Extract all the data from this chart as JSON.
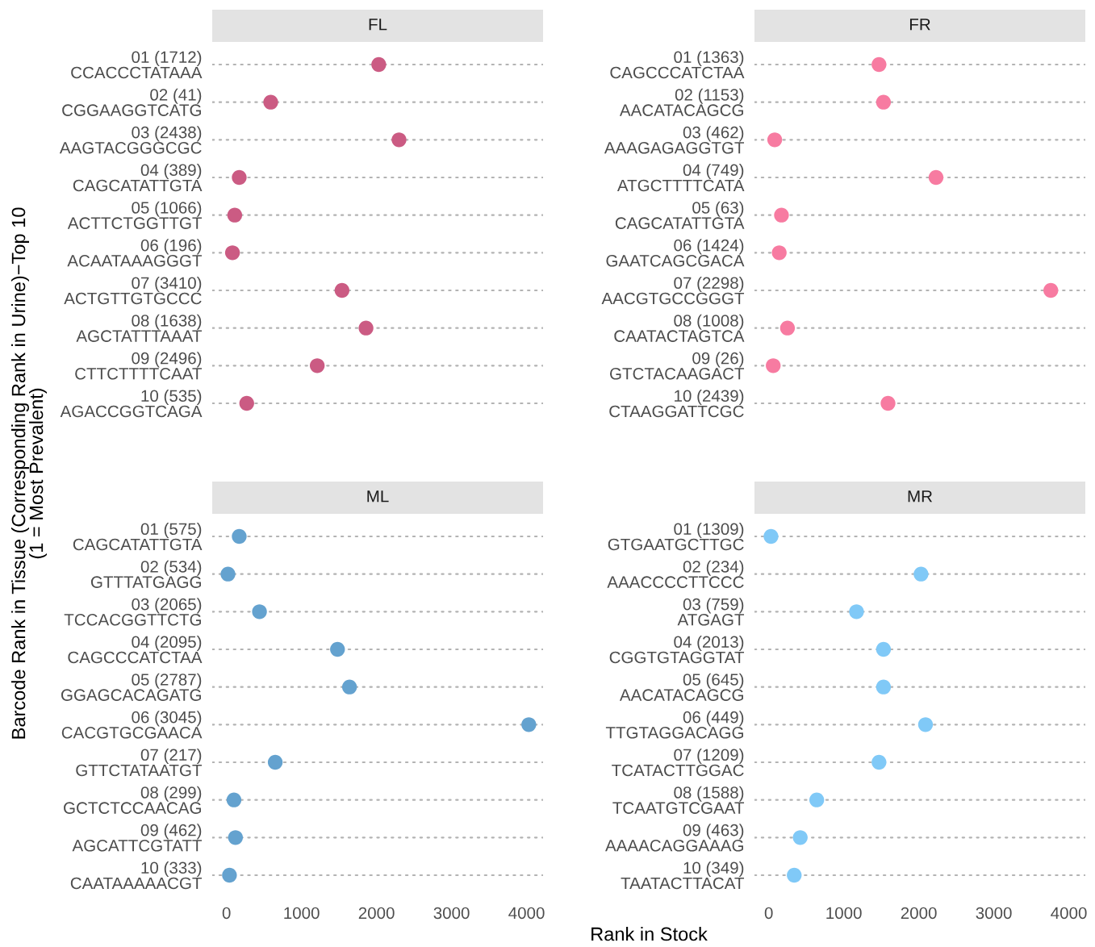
{
  "chart_data": [
    {
      "type": "scatter",
      "title": "FL",
      "ylabel": "Barcode Rank in Tissue (Corresponding Rank in Urine)−Top 10\n(1 = Most Prevalent)",
      "orientation": "horizontal",
      "marker": "circle",
      "grid": "y",
      "tick_labels": "y",
      "color": "#cb5b83",
      "categories": [
        "01 (1712)\nCCACCCTATAAA",
        "02 (41)\nCGGAAGGTCATG",
        "03 (2438)\nAAGTACGGGCGC",
        "04 (389)\nCAGCATATTGTA",
        "05 (1066)\nACTTCTGGTTGT",
        "06 (196)\nACAATAAAGGGT",
        "07 (3410)\nACTGTTGTGCCC",
        "08 (1638)\nAGCTATTTAAAT",
        "09 (2496)\nCTTCTTTTCAAT",
        "10 (535)\nAGACCGGTCAGA"
      ],
      "values": [
        2030,
        590,
        2300,
        170,
        110,
        80,
        1540,
        1860,
        1210,
        270
      ],
      "xlim": [
        -190,
        4220
      ],
      "xticks": [
        0,
        1000,
        2000,
        3000,
        4000
      ]
    },
    {
      "type": "scatter",
      "title": "FR",
      "orientation": "horizontal",
      "marker": "circle",
      "grid": "y",
      "tick_labels": "y",
      "color": "#f77ba1",
      "categories": [
        "01 (1363)\nCAGCCCATCTAA",
        "02 (1153)\nAACATACAGCG",
        "03 (462)\nAAAGAGAGGTGT",
        "04 (749)\nATGCTTTTCATA",
        "05 (63)\nCAGCATATTGTA",
        "06 (1424)\nGAATCAGCGACA",
        "07 (2298)\nAACGTGCCGGGT",
        "08 (1008)\nCAATACTAGTCA",
        "09 (26)\nGTCTACAAGACT",
        "10 (2439)\nCTAAGGATTCGC"
      ],
      "values": [
        1470,
        1530,
        80,
        2230,
        170,
        140,
        3760,
        250,
        60,
        1590
      ],
      "xlim": [
        -190,
        4220
      ],
      "xticks": [
        0,
        1000,
        2000,
        3000,
        4000
      ]
    },
    {
      "type": "scatter",
      "title": "ML",
      "xlabel": "Rank in Stock",
      "orientation": "horizontal",
      "marker": "circle",
      "grid": "y",
      "color": "#64a2cf",
      "categories": [
        "01 (575)\nCAGCATATTGTA",
        "02 (534)\nGTTTATGAGG",
        "03 (2065)\nTCCACGGTTCTG",
        "04 (2095)\nCAGCCCATCTAA",
        "05 (2787)\nGGAGCACAGATG",
        "06 (3045)\nCACGTGCGAACA",
        "07 (217)\nGTTCTATAATGT",
        "08 (299)\nGCTCTCCAACAG",
        "09 (462)\nAGCATTCGTATT",
        "10 (333)\nCAATAAAAACGT"
      ],
      "values": [
        170,
        20,
        440,
        1480,
        1640,
        4030,
        650,
        100,
        120,
        40
      ],
      "xlim": [
        -190,
        4220
      ],
      "xticks": [
        0,
        1000,
        2000,
        3000,
        4000
      ]
    },
    {
      "type": "scatter",
      "title": "MR",
      "orientation": "horizontal",
      "marker": "circle",
      "grid": "y",
      "color": "#80c9f7",
      "categories": [
        "01 (1309)\nGTGAATGCTTGC",
        "02 (234)\nAAACCCCTTCCC",
        "03 (759)\nATGAGT",
        "04 (2013)\nCGGTGTAGGTAT",
        "05 (645)\nAACATACAGCG",
        "06 (449)\nTTGTAGGACAGG",
        "07 (1209)\nTCATACTTGGAC",
        "08 (1588)\nTCAATGTCGAAT",
        "09 (463)\nAAAACAGGAAAG",
        "10 (349)\nTAATACTTACAT"
      ],
      "values": [
        30,
        2030,
        1170,
        1530,
        1530,
        2090,
        1470,
        640,
        420,
        340
      ],
      "xlim": [
        -190,
        4220
      ],
      "xticks": [
        0,
        1000,
        2000,
        3000,
        4000
      ]
    }
  ]
}
